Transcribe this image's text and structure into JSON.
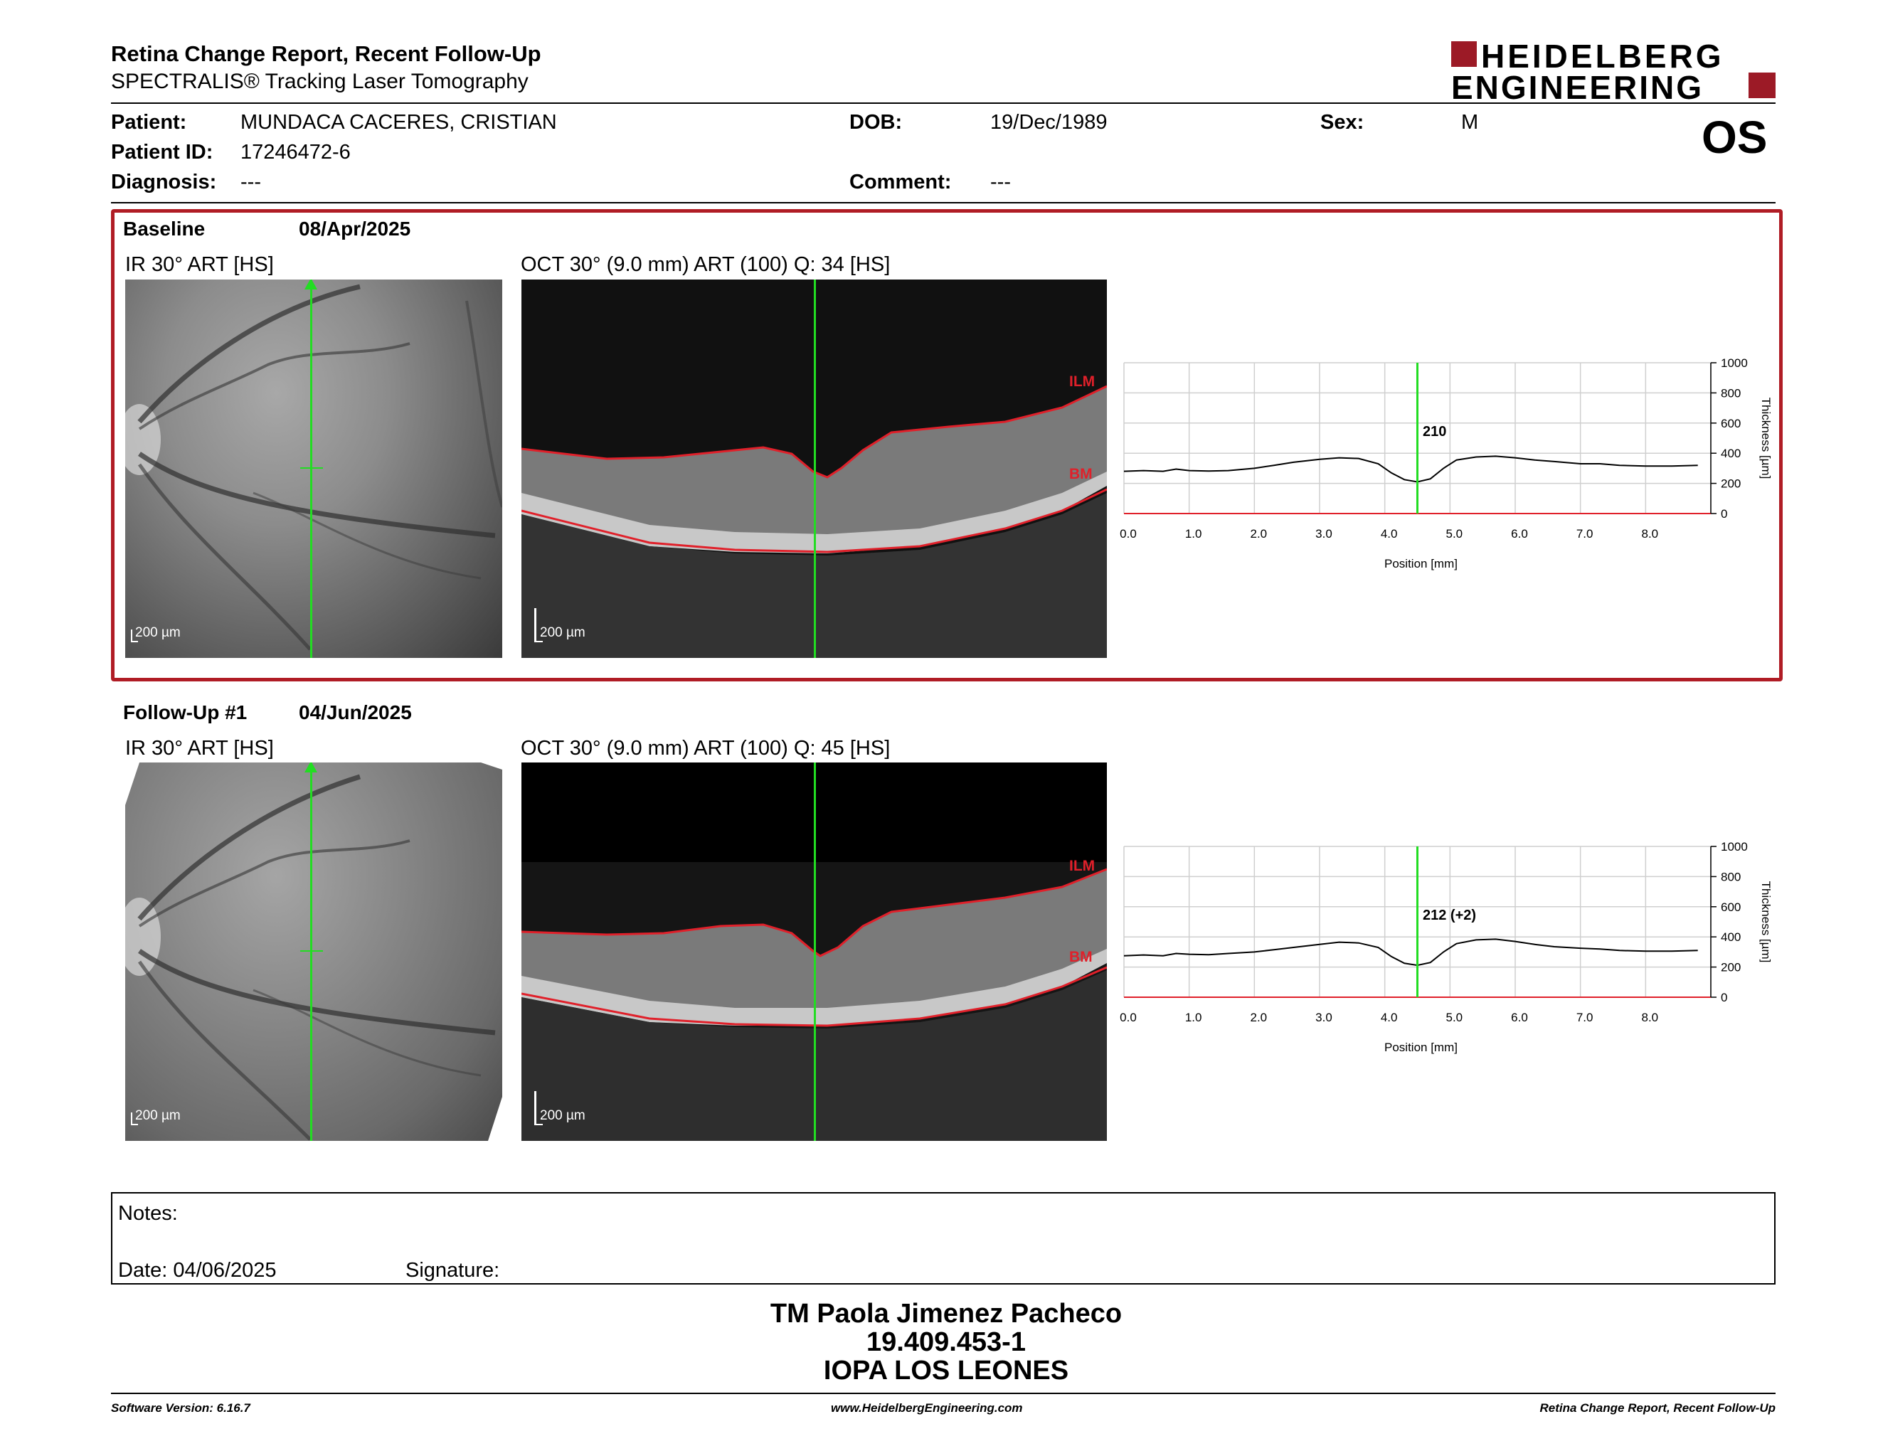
{
  "header": {
    "title": "Retina Change Report, Recent Follow-Up",
    "subtitle": "SPECTRALIS® Tracking Laser Tomography",
    "logo_line1": "HEIDELBERG",
    "logo_line2": "ENGINEERING",
    "eye": "OS"
  },
  "patient": {
    "patient_label": "Patient:",
    "patient_value": "MUNDACA CACERES, CRISTIAN",
    "id_label": "Patient ID:",
    "id_value": "17246472-6",
    "diagnosis_label": "Diagnosis:",
    "diagnosis_value": "---",
    "dob_label": "DOB:",
    "dob_value": "19/Dec/1989",
    "comment_label": "Comment:",
    "comment_value": "---",
    "sex_label": "Sex:",
    "sex_value": "M"
  },
  "baseline": {
    "label": "Baseline",
    "date": "08/Apr/2025",
    "ir_caption": "IR 30° ART [HS]",
    "oct_caption": "OCT 30° (9.0 mm) ART (100) Q: 34 [HS]",
    "scale": "200 µm",
    "ilm": "ILM",
    "bm": "BM",
    "value_label": "210"
  },
  "followup": {
    "label": "Follow-Up #1",
    "date": "04/Jun/2025",
    "ir_caption": "IR 30° ART [HS]",
    "oct_caption": "OCT 30° (9.0 mm) ART (100) Q: 45 [HS]",
    "scale": "200 µm",
    "ilm": "ILM",
    "bm": "BM",
    "value_label": "212 (+2)"
  },
  "chart_data": [
    {
      "type": "line",
      "xlabel": "Position [mm]",
      "ylabel": "Thickness [µm]",
      "xlim": [
        0,
        9
      ],
      "ylim": [
        0,
        1000
      ],
      "xticks": [
        "0.0",
        "1.0",
        "2.0",
        "3.0",
        "4.0",
        "5.0",
        "6.0",
        "7.0",
        "8.0"
      ],
      "yticks": [
        "0",
        "200",
        "400",
        "600",
        "800",
        "1000"
      ],
      "marker_x": 4.5,
      "marker_value": 210,
      "grid": true,
      "series": [
        {
          "x": [
            0,
            0.3,
            0.6,
            0.8,
            1.0,
            1.3,
            1.6,
            2.0,
            2.3,
            2.6,
            3.0,
            3.3,
            3.6,
            3.9,
            4.1,
            4.3,
            4.5,
            4.7,
            4.9,
            5.1,
            5.4,
            5.7,
            6.0,
            6.3,
            6.6,
            7.0,
            7.3,
            7.6,
            8.0,
            8.4,
            8.8
          ],
          "y": [
            280,
            285,
            280,
            295,
            285,
            282,
            285,
            300,
            320,
            340,
            360,
            370,
            365,
            330,
            270,
            225,
            210,
            230,
            300,
            355,
            375,
            380,
            370,
            355,
            345,
            330,
            330,
            320,
            315,
            315,
            320
          ]
        }
      ]
    },
    {
      "type": "line",
      "xlabel": "Position [mm]",
      "ylabel": "Thickness [µm]",
      "xlim": [
        0,
        9
      ],
      "ylim": [
        0,
        1000
      ],
      "xticks": [
        "0.0",
        "1.0",
        "2.0",
        "3.0",
        "4.0",
        "5.0",
        "6.0",
        "7.0",
        "8.0"
      ],
      "yticks": [
        "0",
        "200",
        "400",
        "600",
        "800",
        "1000"
      ],
      "marker_x": 4.5,
      "marker_value": 212,
      "grid": true,
      "series": [
        {
          "x": [
            0,
            0.3,
            0.6,
            0.8,
            1.0,
            1.3,
            1.6,
            2.0,
            2.3,
            2.6,
            3.0,
            3.3,
            3.6,
            3.9,
            4.1,
            4.3,
            4.5,
            4.7,
            4.9,
            5.1,
            5.4,
            5.7,
            6.0,
            6.3,
            6.6,
            7.0,
            7.3,
            7.6,
            8.0,
            8.4,
            8.8
          ],
          "y": [
            275,
            280,
            275,
            290,
            285,
            282,
            290,
            300,
            315,
            330,
            350,
            365,
            360,
            330,
            270,
            225,
            212,
            230,
            300,
            355,
            380,
            385,
            370,
            350,
            335,
            325,
            320,
            310,
            305,
            305,
            310
          ]
        }
      ]
    }
  ],
  "notes": {
    "notes_label": "Notes:",
    "date_label": "Date: 04/06/2025",
    "signature_label": "Signature:"
  },
  "signature": {
    "name": "TM Paola Jimenez Pacheco",
    "rut": "19.409.453-1",
    "place": "IOPA LOS LEONES"
  },
  "footer": {
    "software": "Software Version: 6.16.7",
    "url": "www.HeidelbergEngineering.com",
    "report": "Retina Change Report, Recent Follow-Up"
  },
  "colors": {
    "frame": "#b01c25",
    "marker": "#22dd22",
    "ilm": "#e0202a",
    "logo": "#9c1a26"
  }
}
